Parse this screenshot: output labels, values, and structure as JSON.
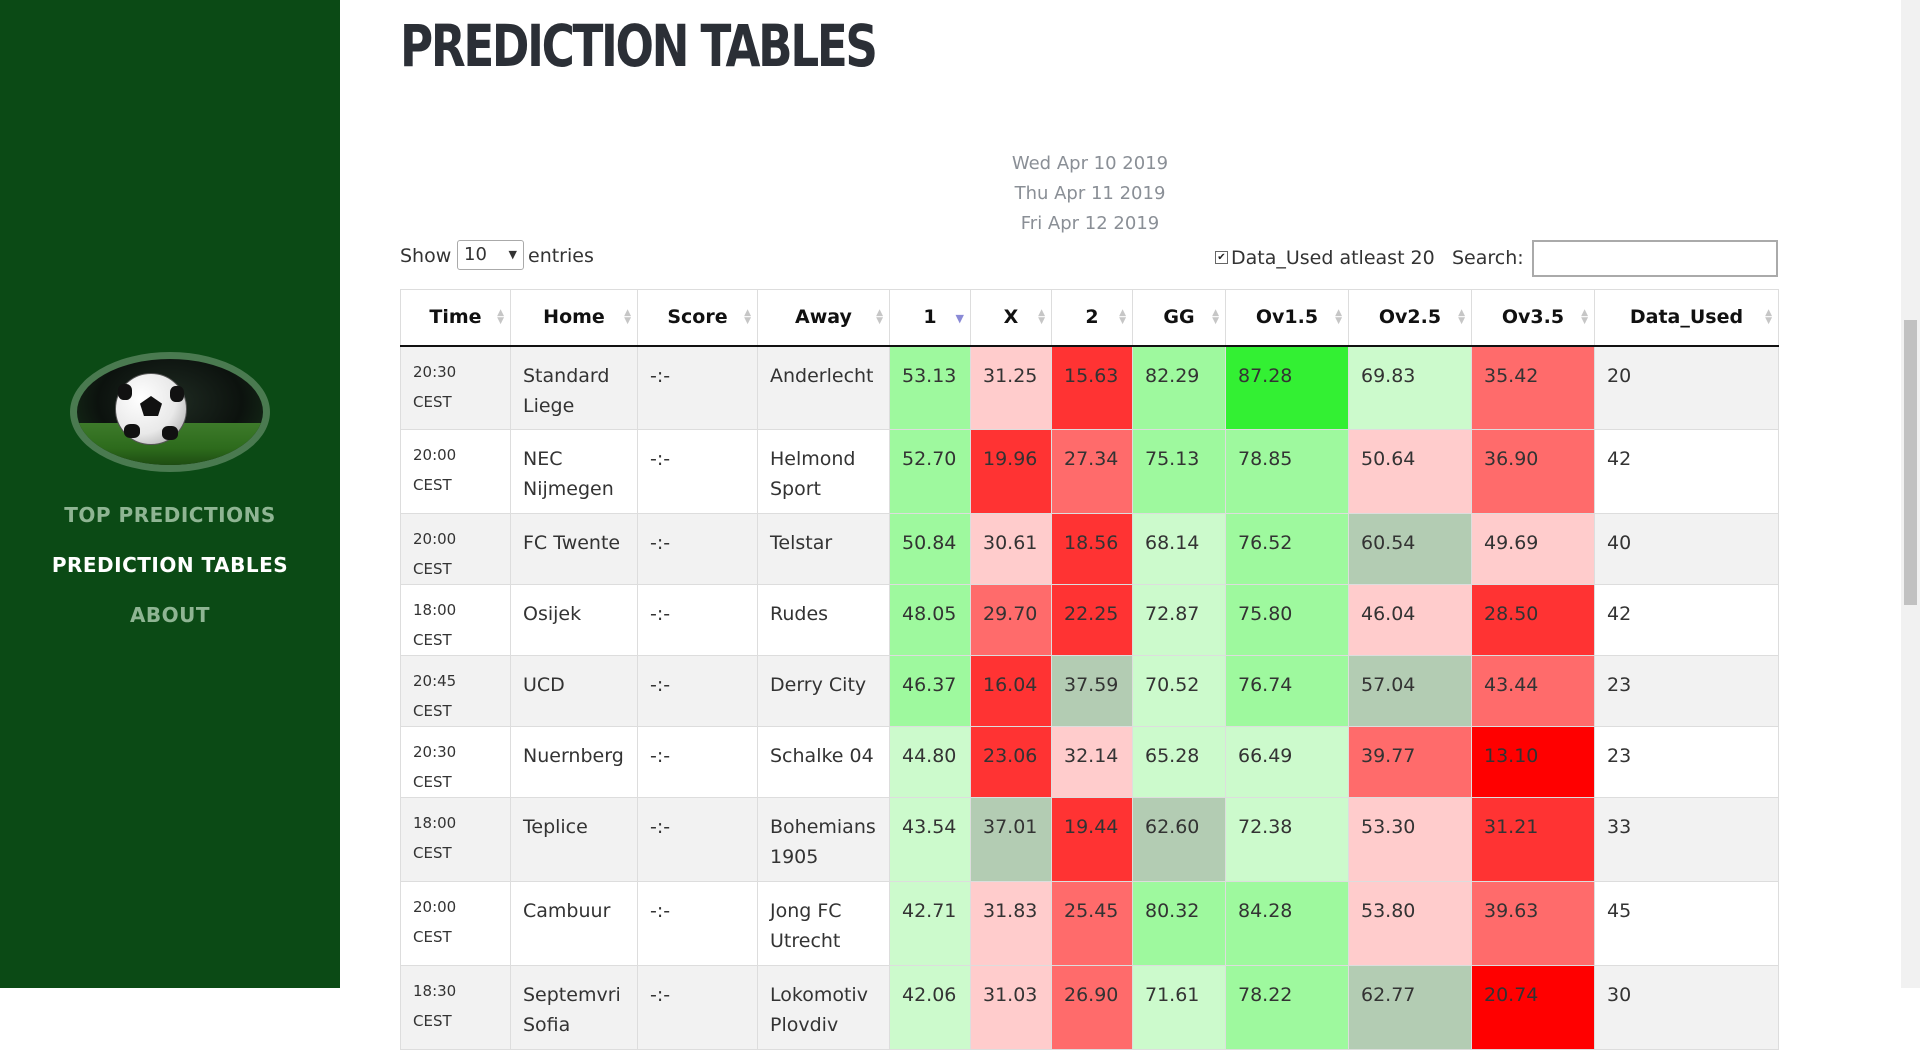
{
  "sidebar": {
    "nav": [
      {
        "label": "TOP PREDICTIONS",
        "active": false
      },
      {
        "label": "PREDICTION TABLES",
        "active": true
      },
      {
        "label": "ABOUT",
        "active": false
      }
    ]
  },
  "main": {
    "title": "PREDICTION TABLES",
    "dates": [
      "Wed Apr 10 2019",
      "Thu Apr 11 2019",
      "Fri Apr 12 2019"
    ],
    "show_label": "Show",
    "entries_value": "10",
    "entries_label": "entries",
    "checkbox_label": "Data_Used atleast 20",
    "search_label": "Search:"
  },
  "table": {
    "columns": [
      "Time",
      "Home",
      "Score",
      "Away",
      "1",
      "X",
      "2",
      "GG",
      "Ov1.5",
      "Ov2.5",
      "Ov3.5",
      "Data_Used"
    ],
    "rows": [
      {
        "time": "20:30 CEST",
        "home": "Standard Liege",
        "score": "-:-",
        "away": "Anderlecht",
        "vals": [
          "53.13",
          "31.25",
          "15.63",
          "82.29",
          "87.28",
          "69.83",
          "35.42"
        ],
        "used": "20"
      },
      {
        "time": "20:00 CEST",
        "home": "NEC Nijmegen",
        "score": "-:-",
        "away": "Helmond Sport",
        "vals": [
          "52.70",
          "19.96",
          "27.34",
          "75.13",
          "78.85",
          "50.64",
          "36.90"
        ],
        "used": "42"
      },
      {
        "time": "20:00 CEST",
        "home": "FC Twente",
        "score": "-:-",
        "away": "Telstar",
        "vals": [
          "50.84",
          "30.61",
          "18.56",
          "68.14",
          "76.52",
          "60.54",
          "49.69"
        ],
        "used": "40"
      },
      {
        "time": "18:00 CEST",
        "home": "Osijek",
        "score": "-:-",
        "away": "Rudes",
        "vals": [
          "48.05",
          "29.70",
          "22.25",
          "72.87",
          "75.80",
          "46.04",
          "28.50"
        ],
        "used": "42"
      },
      {
        "time": "20:45 CEST",
        "home": "UCD",
        "score": "-:-",
        "away": "Derry City",
        "vals": [
          "46.37",
          "16.04",
          "37.59",
          "70.52",
          "76.74",
          "57.04",
          "43.44"
        ],
        "used": "23"
      },
      {
        "time": "20:30 CEST",
        "home": "Nuernberg",
        "score": "-:-",
        "away": "Schalke 04",
        "vals": [
          "44.80",
          "23.06",
          "32.14",
          "65.28",
          "66.49",
          "39.77",
          "13.10"
        ],
        "used": "23"
      },
      {
        "time": "18:00 CEST",
        "home": "Teplice",
        "score": "-:-",
        "away": "Bohemians 1905",
        "vals": [
          "43.54",
          "37.01",
          "19.44",
          "62.60",
          "72.38",
          "53.30",
          "31.21"
        ],
        "used": "33"
      },
      {
        "time": "20:00 CEST",
        "home": "Cambuur",
        "score": "-:-",
        "away": "Jong FC Utrecht",
        "vals": [
          "42.71",
          "31.83",
          "25.45",
          "80.32",
          "84.28",
          "53.80",
          "39.63"
        ],
        "used": "45"
      },
      {
        "time": "18:30 CEST",
        "home": "Septemvri Sofia",
        "score": "-:-",
        "away": "Lokomotiv Plovdiv",
        "vals": [
          "42.06",
          "31.03",
          "26.90",
          "71.61",
          "78.22",
          "62.77",
          "20.74"
        ],
        "used": "30"
      }
    ]
  },
  "colors": {
    "sidebar_bg": "#0b4a15",
    "bright_green": "#33f033",
    "green": "#9ef99e",
    "light_green": "#ccfacc",
    "neutral": "#b3ccb3",
    "light_red": "#ffcccc",
    "red": "#ff6b6b",
    "strong_red": "#ff3333",
    "deep_red": "#ff0000"
  }
}
